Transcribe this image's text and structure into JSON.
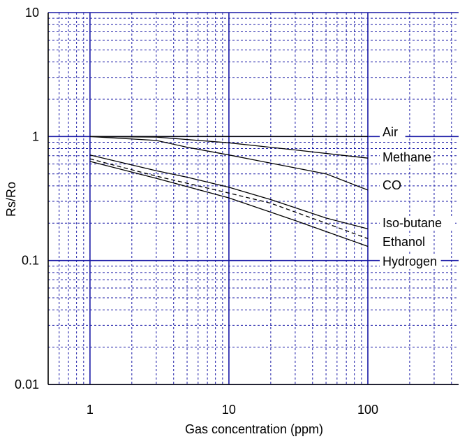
{
  "chart_data": {
    "type": "line",
    "title": "",
    "xlabel": "Gas concentration (ppm)",
    "ylabel": "Rs/Ro",
    "xscale": "log",
    "yscale": "log",
    "xlim": [
      0.5,
      450
    ],
    "ylim": [
      0.01,
      10
    ],
    "x_ticks": [
      {
        "value": 1,
        "label": "1"
      },
      {
        "value": 10,
        "label": "10"
      },
      {
        "value": 100,
        "label": "100"
      }
    ],
    "y_ticks": [
      {
        "value": 10,
        "label": "10"
      },
      {
        "value": 1,
        "label": "1"
      },
      {
        "value": 0.1,
        "label": "0.1"
      },
      {
        "value": 0.01,
        "label": "0.01"
      }
    ],
    "grid": true,
    "grid_color": "#1a1aa6",
    "line_color": "#000000",
    "series": [
      {
        "name": "Air",
        "style": "solid",
        "x": [
          1,
          100
        ],
        "y": [
          1.0,
          1.0
        ]
      },
      {
        "name": "Methane",
        "style": "solid",
        "x": [
          1,
          3,
          10,
          30,
          100
        ],
        "y": [
          1.0,
          0.99,
          0.89,
          0.78,
          0.67
        ]
      },
      {
        "name": "CO",
        "style": "solid",
        "x": [
          1,
          3,
          5,
          10,
          20,
          50,
          100
        ],
        "y": [
          1.0,
          0.93,
          0.82,
          0.71,
          0.61,
          0.5,
          0.37
        ]
      },
      {
        "name": "Iso-butane",
        "style": "solid",
        "x": [
          1,
          3,
          5,
          10,
          20,
          50,
          100
        ],
        "y": [
          0.71,
          0.53,
          0.47,
          0.39,
          0.31,
          0.22,
          0.18
        ]
      },
      {
        "name": "Ethanol",
        "style": "dashed",
        "x": [
          1,
          3,
          10,
          20,
          50,
          100
        ],
        "y": [
          0.66,
          0.48,
          0.35,
          0.29,
          0.2,
          0.15
        ]
      },
      {
        "name": "Hydrogen",
        "style": "solid",
        "x": [
          1,
          3,
          10,
          30,
          100
        ],
        "y": [
          0.63,
          0.46,
          0.32,
          0.21,
          0.13
        ]
      }
    ]
  }
}
